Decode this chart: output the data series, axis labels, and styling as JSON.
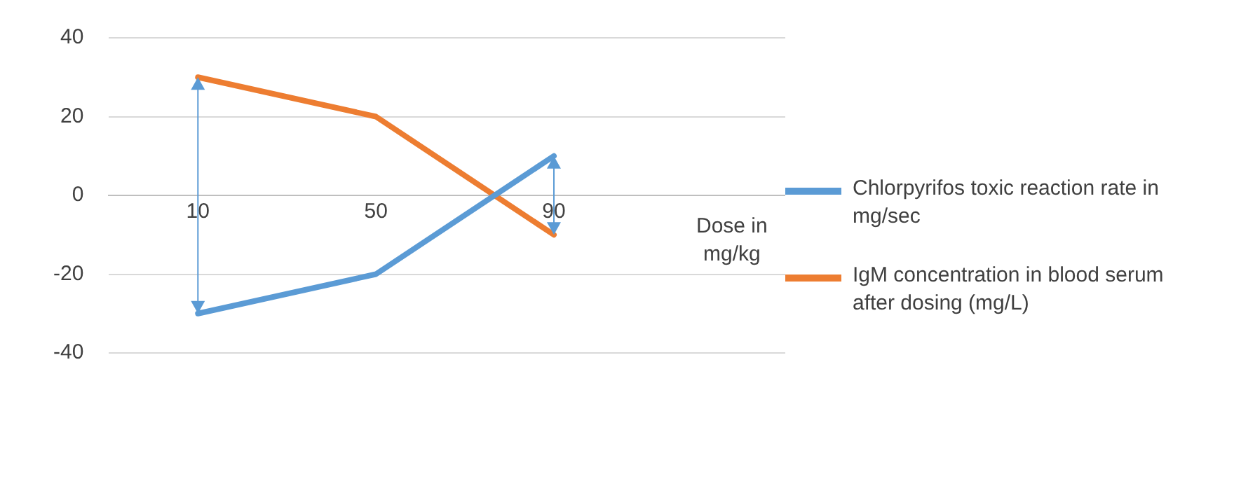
{
  "chart_data": {
    "type": "line",
    "xlabel": "Dose in mg/kg",
    "categories": [
      "10",
      "50",
      "90"
    ],
    "series": [
      {
        "name": "Chlorpyrifos toxic reaction rate in mg/sec",
        "color": "#5b9bd5",
        "values": [
          -30,
          -20,
          10
        ]
      },
      {
        "name": "IgM concentration in blood serum after dosing (mg/L)",
        "color": "#ed7d31",
        "values": [
          30,
          20,
          -10
        ]
      }
    ],
    "ylim": [
      -40,
      40
    ],
    "yticks": [
      -40,
      -20,
      0,
      20,
      40
    ],
    "grid": "y",
    "legend": "right",
    "marker": "none",
    "line_style": "solid"
  }
}
